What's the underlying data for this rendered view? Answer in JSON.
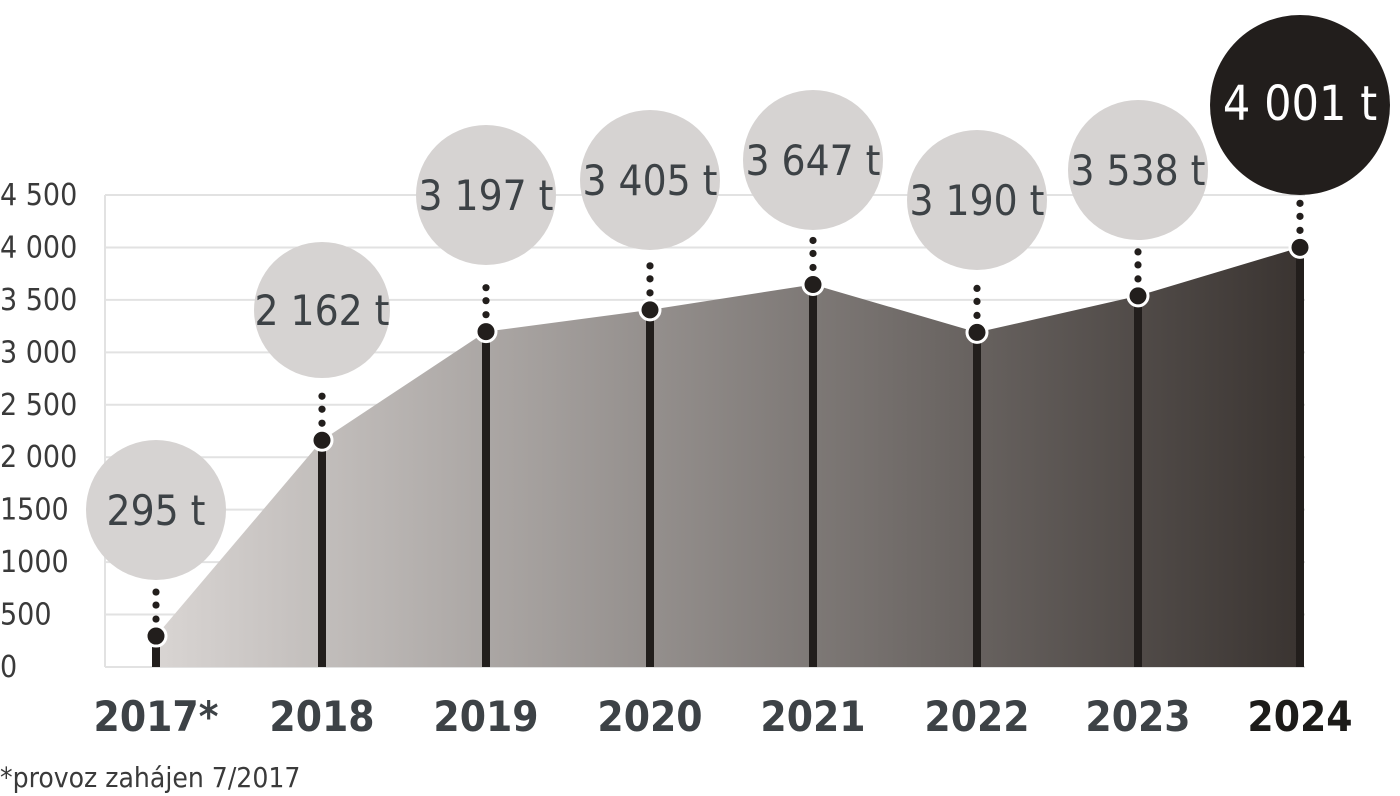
{
  "chart_data": {
    "type": "area",
    "categories": [
      "2017*",
      "2018",
      "2019",
      "2020",
      "2021",
      "2022",
      "2023",
      "2024"
    ],
    "values": [
      295,
      2162,
      3197,
      3405,
      3647,
      3190,
      3538,
      4001
    ],
    "value_labels": [
      "295 t",
      "2 162 t",
      "3 197 t",
      "3 405 t",
      "3 647 t",
      "3 190 t",
      "3 538 t",
      "4 001 t"
    ],
    "y_ticks": [
      {
        "value": 0,
        "label": "0"
      },
      {
        "value": 500,
        "label": "500"
      },
      {
        "value": 1000,
        "label": "1000"
      },
      {
        "value": 1500,
        "label": "1500"
      },
      {
        "value": 2000,
        "label": "2 000"
      },
      {
        "value": 2500,
        "label": "2 500"
      },
      {
        "value": 3000,
        "label": "3 000"
      },
      {
        "value": 3500,
        "label": "3 500"
      },
      {
        "value": 4000,
        "label": "4 000"
      },
      {
        "value": 4500,
        "label": "4 500"
      }
    ],
    "ylim": [
      0,
      4500
    ],
    "grid": true,
    "highlight_last": true,
    "footnote": "*provoz zahájen 7/2017",
    "colors": {
      "area_start": "#d9d5d3",
      "area_end": "#3a3431",
      "bubble": "#d6d3d2",
      "bubble_highlight": "#221e1c",
      "stem": "#221e1c",
      "grid": "#e2e2e2"
    }
  }
}
